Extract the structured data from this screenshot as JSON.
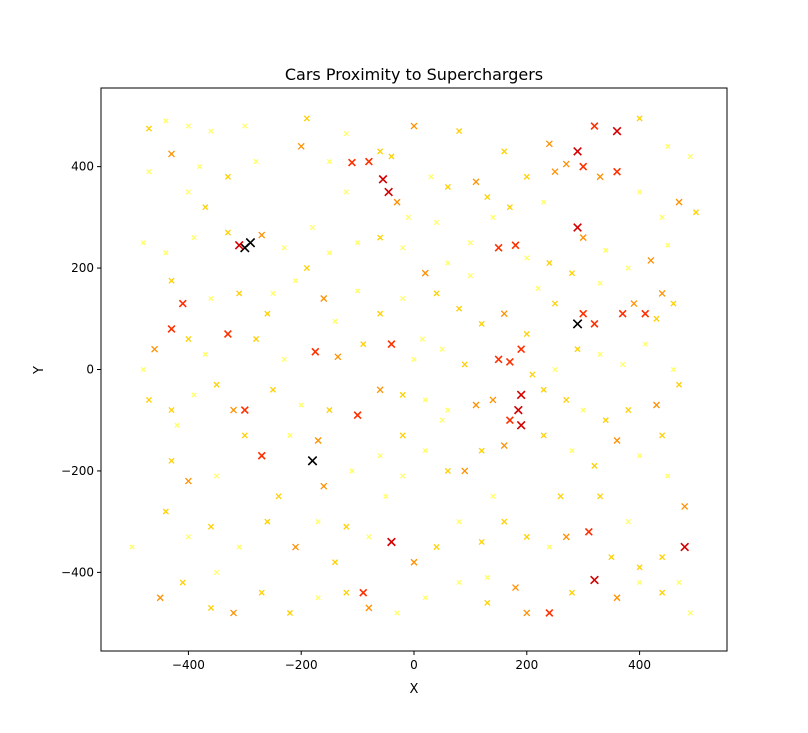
{
  "chart_data": {
    "type": "scatter",
    "title": "Cars Proximity to Superchargers",
    "xlabel": "X",
    "ylabel": "Y",
    "xlim": [
      -555,
      555
    ],
    "ylim": [
      -555,
      555
    ],
    "x_ticks": [
      -400,
      -200,
      0,
      200,
      400
    ],
    "y_ticks": [
      -400,
      -200,
      0,
      200,
      400
    ],
    "x_tick_labels": [
      "−400",
      "−200",
      "0",
      "200",
      "400"
    ],
    "y_tick_labels": [
      "−400",
      "−200",
      "0",
      "200",
      "400"
    ],
    "grid": false,
    "marker": "x",
    "colormap": "autumn_r (light yellow = far, black = near)",
    "colors": {
      "far": "#ffff66",
      "mid_far": "#ffd000",
      "mid": "#ff9000",
      "near": "#ff3000",
      "very_near": "#d40000",
      "closest": "#000000"
    },
    "points": [
      [
        -470,
        475,
        2
      ],
      [
        -440,
        490,
        1
      ],
      [
        -400,
        480,
        1
      ],
      [
        -360,
        470,
        1
      ],
      [
        -300,
        480,
        1
      ],
      [
        -190,
        495,
        2
      ],
      [
        -120,
        465,
        1
      ],
      [
        -60,
        430,
        2
      ],
      [
        0,
        480,
        3
      ],
      [
        80,
        470,
        2
      ],
      [
        160,
        430,
        2
      ],
      [
        240,
        445,
        3
      ],
      [
        290,
        430,
        5
      ],
      [
        320,
        480,
        4
      ],
      [
        360,
        470,
        5
      ],
      [
        400,
        495,
        2
      ],
      [
        450,
        440,
        1
      ],
      [
        490,
        420,
        1
      ],
      [
        -470,
        390,
        1
      ],
      [
        -430,
        425,
        3
      ],
      [
        -380,
        400,
        1
      ],
      [
        -330,
        380,
        2
      ],
      [
        -280,
        410,
        1
      ],
      [
        -200,
        440,
        3
      ],
      [
        -150,
        410,
        1
      ],
      [
        -110,
        408,
        4
      ],
      [
        -80,
        410,
        4
      ],
      [
        -55,
        375,
        5
      ],
      [
        -45,
        350,
        5
      ],
      [
        -30,
        330,
        3
      ],
      [
        -10,
        300,
        1
      ],
      [
        30,
        380,
        1
      ],
      [
        60,
        360,
        2
      ],
      [
        110,
        370,
        3
      ],
      [
        130,
        340,
        2
      ],
      [
        170,
        320,
        2
      ],
      [
        200,
        380,
        2
      ],
      [
        250,
        390,
        3
      ],
      [
        270,
        405,
        3
      ],
      [
        300,
        400,
        4
      ],
      [
        330,
        380,
        3
      ],
      [
        360,
        390,
        4
      ],
      [
        400,
        350,
        1
      ],
      [
        440,
        300,
        1
      ],
      [
        470,
        330,
        3
      ],
      [
        -480,
        250,
        1
      ],
      [
        -440,
        230,
        1
      ],
      [
        -390,
        260,
        1
      ],
      [
        -330,
        270,
        2
      ],
      [
        -300,
        240,
        6
      ],
      [
        -290,
        250,
        6
      ],
      [
        -310,
        245,
        5
      ],
      [
        -270,
        265,
        3
      ],
      [
        -230,
        240,
        1
      ],
      [
        -190,
        200,
        2
      ],
      [
        -150,
        230,
        1
      ],
      [
        -100,
        250,
        1
      ],
      [
        -60,
        260,
        2
      ],
      [
        -20,
        240,
        1
      ],
      [
        20,
        190,
        3
      ],
      [
        60,
        210,
        1
      ],
      [
        100,
        185,
        1
      ],
      [
        150,
        240,
        4
      ],
      [
        180,
        245,
        4
      ],
      [
        200,
        220,
        1
      ],
      [
        240,
        210,
        2
      ],
      [
        280,
        190,
        2
      ],
      [
        290,
        280,
        5
      ],
      [
        300,
        260,
        3
      ],
      [
        340,
        235,
        1
      ],
      [
        380,
        200,
        1
      ],
      [
        420,
        215,
        3
      ],
      [
        450,
        245,
        1
      ],
      [
        -430,
        175,
        2
      ],
      [
        -410,
        130,
        4
      ],
      [
        -360,
        140,
        1
      ],
      [
        -310,
        150,
        2
      ],
      [
        -260,
        110,
        2
      ],
      [
        -210,
        175,
        1
      ],
      [
        -160,
        140,
        3
      ],
      [
        -100,
        155,
        1
      ],
      [
        -60,
        110,
        2
      ],
      [
        -20,
        140,
        1
      ],
      [
        40,
        150,
        2
      ],
      [
        80,
        120,
        2
      ],
      [
        120,
        90,
        2
      ],
      [
        160,
        110,
        3
      ],
      [
        200,
        70,
        2
      ],
      [
        250,
        130,
        2
      ],
      [
        290,
        90,
        6
      ],
      [
        300,
        110,
        4
      ],
      [
        320,
        90,
        4
      ],
      [
        370,
        110,
        4
      ],
      [
        390,
        130,
        3
      ],
      [
        410,
        110,
        4
      ],
      [
        440,
        150,
        3
      ],
      [
        -460,
        40,
        3
      ],
      [
        -430,
        80,
        4
      ],
      [
        -400,
        60,
        2
      ],
      [
        -370,
        30,
        1
      ],
      [
        -330,
        70,
        4
      ],
      [
        -280,
        60,
        2
      ],
      [
        -230,
        20,
        1
      ],
      [
        -175,
        35,
        4
      ],
      [
        -135,
        25,
        3
      ],
      [
        -90,
        50,
        2
      ],
      [
        -40,
        50,
        4
      ],
      [
        0,
        20,
        1
      ],
      [
        50,
        40,
        1
      ],
      [
        90,
        10,
        2
      ],
      [
        150,
        20,
        4
      ],
      [
        170,
        15,
        4
      ],
      [
        190,
        40,
        4
      ],
      [
        210,
        -10,
        2
      ],
      [
        250,
        0,
        1
      ],
      [
        290,
        40,
        2
      ],
      [
        330,
        30,
        1
      ],
      [
        370,
        10,
        1
      ],
      [
        410,
        50,
        1
      ],
      [
        460,
        0,
        1
      ],
      [
        -470,
        -60,
        2
      ],
      [
        -430,
        -80,
        2
      ],
      [
        -390,
        -50,
        1
      ],
      [
        -350,
        -30,
        2
      ],
      [
        -320,
        -80,
        3
      ],
      [
        -300,
        -80,
        4
      ],
      [
        -250,
        -40,
        2
      ],
      [
        -200,
        -70,
        1
      ],
      [
        -150,
        -80,
        2
      ],
      [
        -100,
        -90,
        4
      ],
      [
        -60,
        -40,
        3
      ],
      [
        -20,
        -50,
        2
      ],
      [
        20,
        -60,
        1
      ],
      [
        60,
        -80,
        1
      ],
      [
        110,
        -70,
        3
      ],
      [
        140,
        -60,
        3
      ],
      [
        170,
        -100,
        4
      ],
      [
        185,
        -80,
        5
      ],
      [
        190,
        -50,
        5
      ],
      [
        230,
        -40,
        2
      ],
      [
        270,
        -60,
        2
      ],
      [
        300,
        -80,
        1
      ],
      [
        340,
        -100,
        2
      ],
      [
        380,
        -80,
        2
      ],
      [
        430,
        -70,
        3
      ],
      [
        470,
        -30,
        2
      ],
      [
        -430,
        -180,
        2
      ],
      [
        -400,
        -220,
        3
      ],
      [
        -350,
        -210,
        1
      ],
      [
        -300,
        -130,
        2
      ],
      [
        -270,
        -170,
        4
      ],
      [
        -220,
        -130,
        1
      ],
      [
        -180,
        -180,
        6
      ],
      [
        -170,
        -140,
        3
      ],
      [
        -160,
        -230,
        3
      ],
      [
        -110,
        -200,
        1
      ],
      [
        -60,
        -170,
        1
      ],
      [
        -20,
        -130,
        2
      ],
      [
        20,
        -160,
        1
      ],
      [
        60,
        -200,
        2
      ],
      [
        90,
        -200,
        3
      ],
      [
        120,
        -160,
        2
      ],
      [
        160,
        -150,
        3
      ],
      [
        190,
        -110,
        5
      ],
      [
        230,
        -130,
        2
      ],
      [
        280,
        -160,
        1
      ],
      [
        320,
        -190,
        2
      ],
      [
        360,
        -140,
        3
      ],
      [
        400,
        -170,
        1
      ],
      [
        450,
        -210,
        1
      ],
      [
        480,
        -270,
        3
      ],
      [
        -440,
        -280,
        2
      ],
      [
        -400,
        -330,
        1
      ],
      [
        -360,
        -310,
        2
      ],
      [
        -310,
        -350,
        1
      ],
      [
        -260,
        -300,
        2
      ],
      [
        -210,
        -350,
        3
      ],
      [
        -170,
        -300,
        1
      ],
      [
        -120,
        -310,
        2
      ],
      [
        -80,
        -330,
        1
      ],
      [
        -40,
        -340,
        5
      ],
      [
        0,
        -380,
        3
      ],
      [
        40,
        -350,
        2
      ],
      [
        80,
        -300,
        1
      ],
      [
        120,
        -340,
        2
      ],
      [
        160,
        -300,
        2
      ],
      [
        200,
        -330,
        2
      ],
      [
        240,
        -350,
        1
      ],
      [
        270,
        -330,
        3
      ],
      [
        310,
        -320,
        4
      ],
      [
        320,
        -415,
        5
      ],
      [
        350,
        -370,
        2
      ],
      [
        400,
        -390,
        2
      ],
      [
        440,
        -370,
        2
      ],
      [
        480,
        -350,
        5
      ],
      [
        -450,
        -450,
        3
      ],
      [
        -410,
        -420,
        2
      ],
      [
        -360,
        -470,
        2
      ],
      [
        -320,
        -480,
        3
      ],
      [
        -270,
        -440,
        2
      ],
      [
        -220,
        -480,
        2
      ],
      [
        -170,
        -450,
        1
      ],
      [
        -120,
        -440,
        2
      ],
      [
        -90,
        -440,
        4
      ],
      [
        -80,
        -470,
        3
      ],
      [
        -30,
        -480,
        1
      ],
      [
        20,
        -450,
        1
      ],
      [
        80,
        -420,
        1
      ],
      [
        130,
        -460,
        2
      ],
      [
        180,
        -430,
        3
      ],
      [
        200,
        -480,
        3
      ],
      [
        240,
        -480,
        4
      ],
      [
        280,
        -440,
        2
      ],
      [
        360,
        -450,
        3
      ],
      [
        400,
        -420,
        1
      ],
      [
        440,
        -440,
        2
      ],
      [
        470,
        -420,
        1
      ],
      [
        490,
        -480,
        1
      ],
      [
        -500,
        -350,
        1
      ],
      [
        -480,
        0,
        1
      ],
      [
        500,
        310,
        2
      ],
      [
        460,
        130,
        2
      ],
      [
        430,
        100,
        2
      ],
      [
        -400,
        350,
        1
      ],
      [
        -250,
        150,
        1
      ],
      [
        50,
        -100,
        1
      ],
      [
        100,
        250,
        1
      ],
      [
        -120,
        350,
        1
      ],
      [
        330,
        -250,
        2
      ],
      [
        -240,
        -250,
        2
      ],
      [
        140,
        300,
        1
      ],
      [
        -50,
        -250,
        1
      ],
      [
        260,
        -250,
        2
      ],
      [
        -350,
        -400,
        1
      ],
      [
        380,
        -300,
        1
      ],
      [
        15,
        60,
        1
      ],
      [
        -140,
        95,
        1
      ],
      [
        220,
        160,
        1
      ],
      [
        -20,
        -210,
        1
      ],
      [
        140,
        -250,
        1
      ],
      [
        -370,
        320,
        2
      ],
      [
        230,
        330,
        1
      ],
      [
        -180,
        280,
        1
      ],
      [
        -40,
        420,
        2
      ],
      [
        40,
        290,
        1
      ],
      [
        330,
        170,
        1
      ],
      [
        -420,
        -110,
        1
      ],
      [
        440,
        -130,
        2
      ],
      [
        130,
        -410,
        1
      ],
      [
        -140,
        -380,
        2
      ]
    ]
  }
}
